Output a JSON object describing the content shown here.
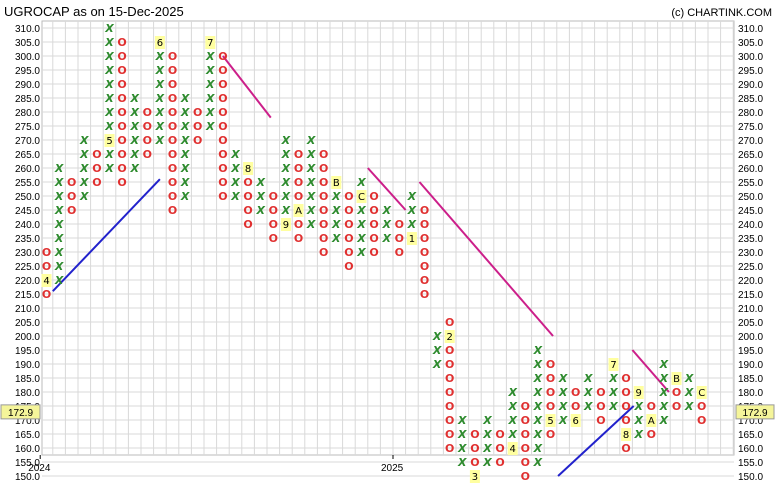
{
  "header": {
    "title": "UGROCAP as on 15-Dec-2025",
    "credit": "(c) CHARTINK.COM"
  },
  "chart_data": {
    "type": "point-and-figure",
    "title": "UGROCAP as on 15-Dec-2025",
    "box_size": 5,
    "ylim": [
      150,
      310
    ],
    "y_tick_labels": [
      "310.0",
      "305.0",
      "300.0",
      "295.0",
      "290.0",
      "285.0",
      "280.0",
      "275.0",
      "270.0",
      "265.0",
      "260.0",
      "255.0",
      "250.0",
      "245.0",
      "240.0",
      "235.0",
      "230.0",
      "225.0",
      "220.0",
      "215.0",
      "210.0",
      "205.0",
      "200.0",
      "195.0",
      "190.0",
      "185.0",
      "180.0",
      "175.0",
      "170.0",
      "165.0",
      "160.0",
      "155.0",
      "150.0"
    ],
    "last_price": "172.9",
    "x_labels": [
      {
        "label": "2024",
        "col": 0
      },
      {
        "label": "2025",
        "col": 28
      }
    ],
    "columns": [
      {
        "type": "O",
        "high": 230,
        "low": 215,
        "markers": [
          {
            "price": 220,
            "label": "4"
          }
        ]
      },
      {
        "type": "X",
        "high": 260,
        "low": 220
      },
      {
        "type": "O",
        "high": 255,
        "low": 245
      },
      {
        "type": "X",
        "high": 270,
        "low": 250
      },
      {
        "type": "O",
        "high": 265,
        "low": 255
      },
      {
        "type": "X",
        "high": 310,
        "low": 260,
        "markers": [
          {
            "price": 270,
            "label": "5"
          }
        ]
      },
      {
        "type": "O",
        "high": 305,
        "low": 255
      },
      {
        "type": "X",
        "high": 285,
        "low": 260
      },
      {
        "type": "O",
        "high": 280,
        "low": 265
      },
      {
        "type": "X",
        "high": 300,
        "low": 270,
        "markers": [
          {
            "price": 305,
            "label": "6"
          }
        ]
      },
      {
        "type": "O",
        "high": 300,
        "low": 245
      },
      {
        "type": "X",
        "high": 285,
        "low": 250
      },
      {
        "type": "O",
        "high": 280,
        "low": 270
      },
      {
        "type": "X",
        "high": 305,
        "low": 275,
        "markers": [
          {
            "price": 305,
            "label": "7"
          }
        ]
      },
      {
        "type": "O",
        "high": 300,
        "low": 250
      },
      {
        "type": "X",
        "high": 265,
        "low": 250
      },
      {
        "type": "O",
        "high": 260,
        "low": 240,
        "markers": [
          {
            "price": 260,
            "label": "8"
          }
        ]
      },
      {
        "type": "X",
        "high": 255,
        "low": 245
      },
      {
        "type": "O",
        "high": 250,
        "low": 235
      },
      {
        "type": "X",
        "high": 270,
        "low": 240,
        "markers": [
          {
            "price": 240,
            "label": "9"
          }
        ]
      },
      {
        "type": "O",
        "high": 265,
        "low": 235,
        "markers": [
          {
            "price": 245,
            "label": "A"
          }
        ]
      },
      {
        "type": "X",
        "high": 270,
        "low": 240
      },
      {
        "type": "O",
        "high": 265,
        "low": 230
      },
      {
        "type": "X",
        "high": 255,
        "low": 235,
        "markers": [
          {
            "price": 255,
            "label": "B"
          }
        ]
      },
      {
        "type": "O",
        "high": 250,
        "low": 225
      },
      {
        "type": "X",
        "high": 255,
        "low": 230,
        "markers": [
          {
            "price": 250,
            "label": "C"
          }
        ]
      },
      {
        "type": "O",
        "high": 250,
        "low": 230
      },
      {
        "type": "X",
        "high": 245,
        "low": 235
      },
      {
        "type": "O",
        "high": 240,
        "low": 230
      },
      {
        "type": "X",
        "high": 250,
        "low": 235,
        "markers": [
          {
            "price": 235,
            "label": "1"
          }
        ]
      },
      {
        "type": "O",
        "high": 245,
        "low": 215
      },
      {
        "type": "X",
        "high": 200,
        "low": 190
      },
      {
        "type": "O",
        "high": 205,
        "low": 160,
        "markers": [
          {
            "price": 200,
            "label": "2"
          }
        ]
      },
      {
        "type": "X",
        "high": 170,
        "low": 155
      },
      {
        "type": "O",
        "high": 165,
        "low": 155,
        "markers": [
          {
            "price": 150,
            "label": "3"
          }
        ]
      },
      {
        "type": "X",
        "high": 170,
        "low": 155
      },
      {
        "type": "O",
        "high": 165,
        "low": 155
      },
      {
        "type": "X",
        "high": 180,
        "low": 160,
        "markers": [
          {
            "price": 160,
            "label": "4"
          }
        ]
      },
      {
        "type": "O",
        "high": 175,
        "low": 150
      },
      {
        "type": "X",
        "high": 195,
        "low": 155
      },
      {
        "type": "O",
        "high": 190,
        "low": 165,
        "markers": [
          {
            "price": 170,
            "label": "5"
          }
        ]
      },
      {
        "type": "X",
        "high": 185,
        "low": 170
      },
      {
        "type": "O",
        "high": 180,
        "low": 170,
        "markers": [
          {
            "price": 170,
            "label": "6"
          }
        ]
      },
      {
        "type": "X",
        "high": 185,
        "low": 175
      },
      {
        "type": "O",
        "high": 180,
        "low": 170
      },
      {
        "type": "X",
        "high": 190,
        "low": 175,
        "markers": [
          {
            "price": 190,
            "label": "7"
          }
        ]
      },
      {
        "type": "O",
        "high": 185,
        "low": 160,
        "markers": [
          {
            "price": 165,
            "label": "8"
          }
        ]
      },
      {
        "type": "X",
        "high": 180,
        "low": 165,
        "markers": [
          {
            "price": 180,
            "label": "9"
          }
        ]
      },
      {
        "type": "O",
        "high": 175,
        "low": 165,
        "markers": [
          {
            "price": 170,
            "label": "A"
          }
        ]
      },
      {
        "type": "X",
        "high": 190,
        "low": 170
      },
      {
        "type": "O",
        "high": 185,
        "low": 175,
        "markers": [
          {
            "price": 185,
            "label": "B"
          }
        ]
      },
      {
        "type": "X",
        "high": 185,
        "low": 175
      },
      {
        "type": "O",
        "high": 180,
        "low": 170,
        "markers": [
          {
            "price": 180,
            "label": "C"
          }
        ]
      }
    ],
    "trendlines": [
      {
        "kind": "support",
        "color": "#2222cc",
        "from": {
          "col": 0.5,
          "price": 216
        },
        "to": {
          "col": 9,
          "price": 256
        }
      },
      {
        "kind": "resistance",
        "color": "#cc1f8a",
        "from": {
          "col": 14,
          "price": 300
        },
        "to": {
          "col": 17.8,
          "price": 278
        }
      },
      {
        "kind": "resistance",
        "color": "#cc1f8a",
        "from": {
          "col": 25.5,
          "price": 260
        },
        "to": {
          "col": 28.5,
          "price": 245
        }
      },
      {
        "kind": "resistance",
        "color": "#cc1f8a",
        "from": {
          "col": 29.6,
          "price": 255
        },
        "to": {
          "col": 40.2,
          "price": 200
        }
      },
      {
        "kind": "support",
        "color": "#2222cc",
        "from": {
          "col": 40.6,
          "price": 150
        },
        "to": {
          "col": 46.6,
          "price": 175
        }
      },
      {
        "kind": "resistance",
        "color": "#cc1f8a",
        "from": {
          "col": 46.5,
          "price": 195
        },
        "to": {
          "col": 49.4,
          "price": 180
        }
      }
    ]
  }
}
